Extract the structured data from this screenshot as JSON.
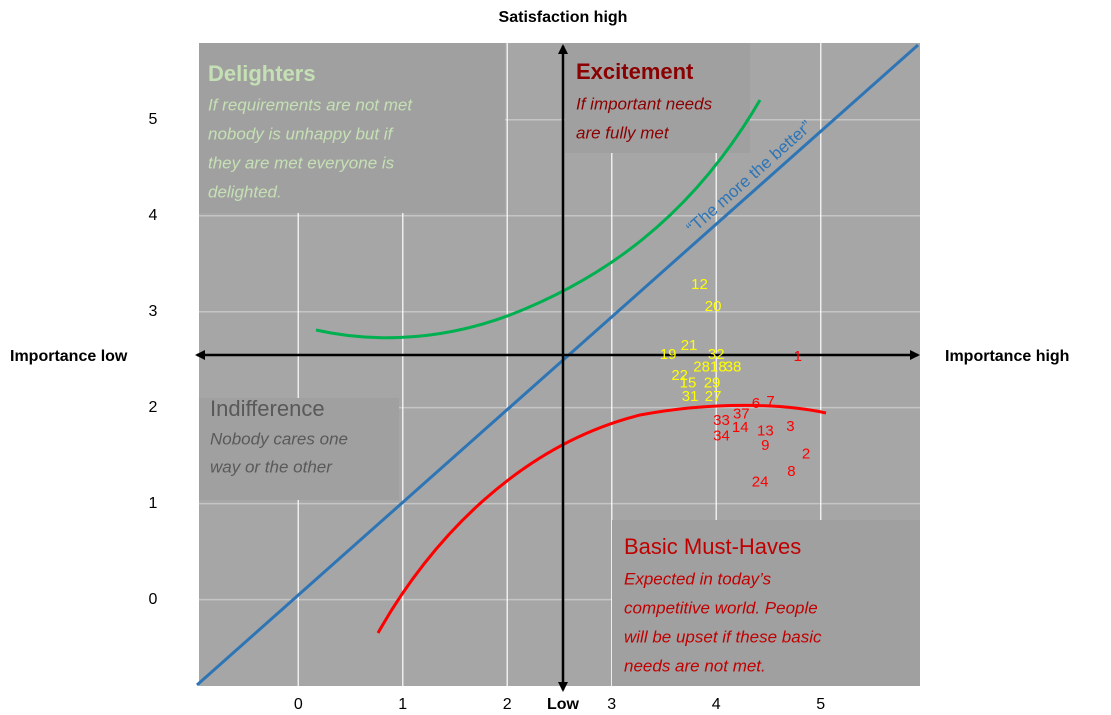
{
  "chart_data": {
    "type": "scatter",
    "title": "Satisfaction high",
    "y_label_bottom": "Low",
    "x_label_left": "Importance low",
    "x_label_right": "Importance high",
    "xlim": [
      -0.95,
      5.95
    ],
    "ylim": [
      -0.9,
      5.8
    ],
    "xticks": [
      0,
      1,
      2,
      3,
      4,
      5
    ],
    "yticks": [
      0,
      1,
      2,
      3,
      4,
      5
    ],
    "grid": true,
    "diagonal_label": "“The more the better”",
    "annotations": [
      {
        "title": "Delighters",
        "color": "#c5e0b4",
        "lines": [
          "If requirements are not met",
          "nobody is unhappy but if",
          "they are met everyone is",
          "delighted."
        ]
      },
      {
        "title": "Excitement",
        "color": "#8b0000",
        "lines": [
          "If important needs",
          "are fully met"
        ]
      },
      {
        "title": "Indifference",
        "color": "#595959",
        "lines": [
          "Nobody cares one",
          "way or the other"
        ]
      },
      {
        "title": "Basic Must-Haves",
        "color": "#c00000",
        "lines": [
          "Expected in today’s",
          "competitive world. People",
          "will be upset if these basic",
          "needs are not met."
        ]
      }
    ],
    "series": [
      {
        "color": "#ffff00",
        "labels": [
          "12",
          "20",
          "21",
          "19",
          "32",
          "28",
          "18",
          "38",
          "22",
          "15",
          "29",
          "31",
          "27"
        ],
        "x": [
          3.84,
          3.97,
          3.74,
          3.54,
          4.0,
          3.86,
          4.02,
          4.16,
          3.65,
          3.73,
          3.96,
          3.75,
          3.97
        ],
        "values": [
          3.28,
          3.05,
          2.64,
          2.55,
          2.55,
          2.42,
          2.42,
          2.42,
          2.33,
          2.25,
          2.25,
          2.11,
          2.11
        ]
      },
      {
        "color": "#ff0000",
        "labels": [
          "1",
          "6",
          "7",
          "33",
          "37",
          "34",
          "14",
          "13",
          "3",
          "9",
          "2",
          "8",
          "24"
        ],
        "x": [
          4.78,
          4.38,
          4.52,
          4.05,
          4.24,
          4.05,
          4.23,
          4.47,
          4.71,
          4.47,
          4.86,
          4.72,
          4.42
        ],
        "values": [
          2.53,
          2.04,
          2.06,
          1.86,
          1.93,
          1.7,
          1.79,
          1.75,
          1.8,
          1.6,
          1.51,
          1.33,
          1.22
        ]
      }
    ]
  }
}
